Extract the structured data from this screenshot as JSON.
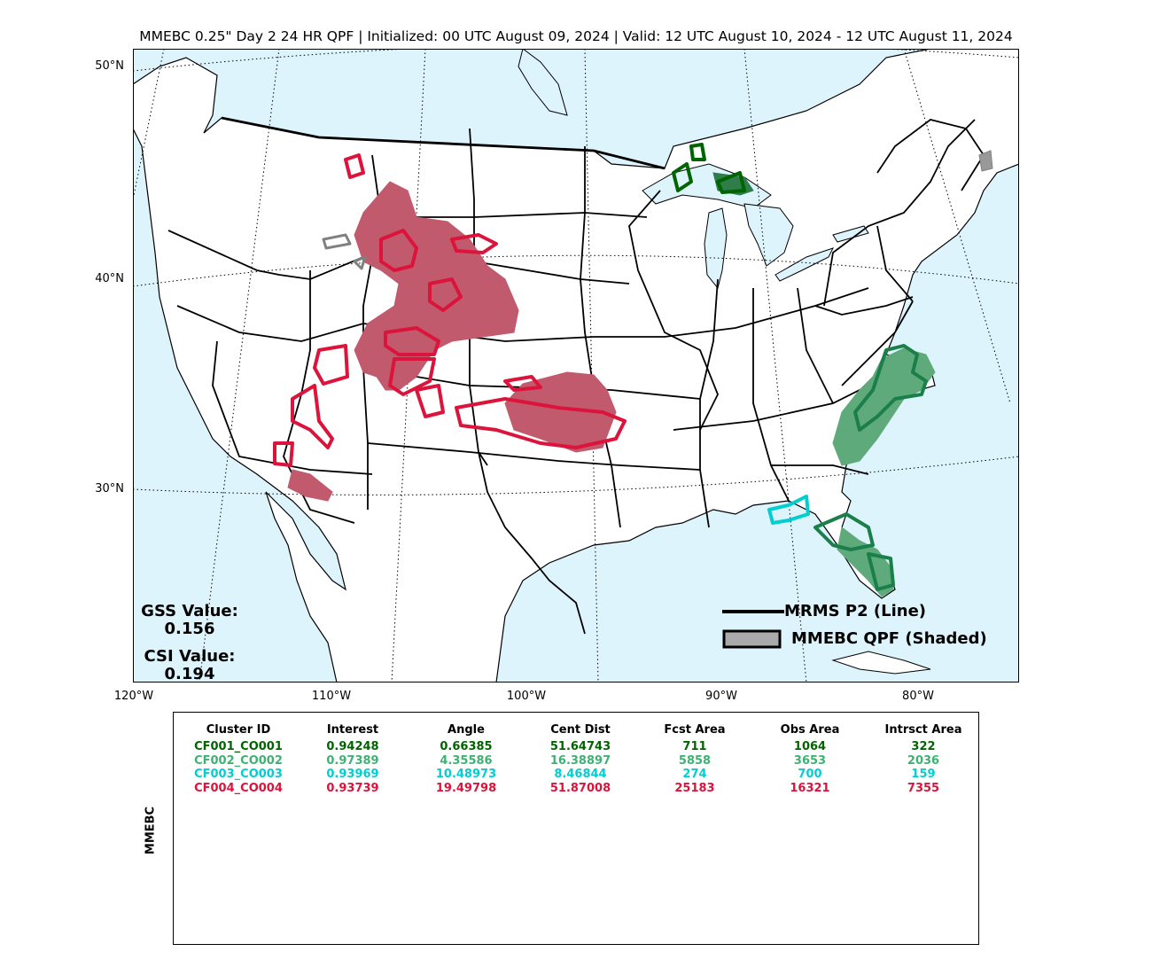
{
  "title": "MMEBC 0.25\" Day 2 24 HR QPF | Initialized: 00 UTC August 09, 2024 | Valid: 12 UTC August 10, 2024 - 12 UTC August 11, 2024",
  "lat_labels": [
    "50°N",
    "40°N",
    "30°N"
  ],
  "lon_labels": [
    "120°W",
    "110°W",
    "100°W",
    "90°W",
    "80°W"
  ],
  "scores": {
    "gss_label": "GSS Value:",
    "gss_value": "0.156",
    "csi_label": "CSI Value:",
    "csi_value": "0.194"
  },
  "legend": {
    "line_label": "MRMS P2 (Line)",
    "shaded_label": "MMEBC QPF (Shaded)"
  },
  "colors": {
    "ocean": "#ddf4fd",
    "land": "#ffffff",
    "cluster1": "#006400",
    "cluster2": "#3cb371",
    "cluster3": "#00ced1",
    "cluster4": "#dc143c",
    "unmatched": "#808080"
  },
  "table": {
    "ylabel": "MMEBC",
    "columns": [
      "Cluster ID",
      "Interest",
      "Angle",
      "Cent Dist",
      "Fcst Area",
      "Obs Area",
      "Intrsct Area"
    ],
    "rows": [
      {
        "cells": [
          "CF001_CO001",
          "0.94248",
          "0.66385",
          "51.64743",
          "711",
          "1064",
          "322"
        ],
        "color": "#006400"
      },
      {
        "cells": [
          "CF002_CO002",
          "0.97389",
          "4.35586",
          "16.38897",
          "5858",
          "3653",
          "2036"
        ],
        "color": "#3cb371"
      },
      {
        "cells": [
          "CF003_CO003",
          "0.93969",
          "10.48973",
          "8.46844",
          "274",
          "700",
          "159"
        ],
        "color": "#00ced1"
      },
      {
        "cells": [
          "CF004_CO004",
          "0.93739",
          "19.49798",
          "51.87008",
          "25183",
          "16321",
          "7355"
        ],
        "color": "#dc143c"
      }
    ]
  }
}
